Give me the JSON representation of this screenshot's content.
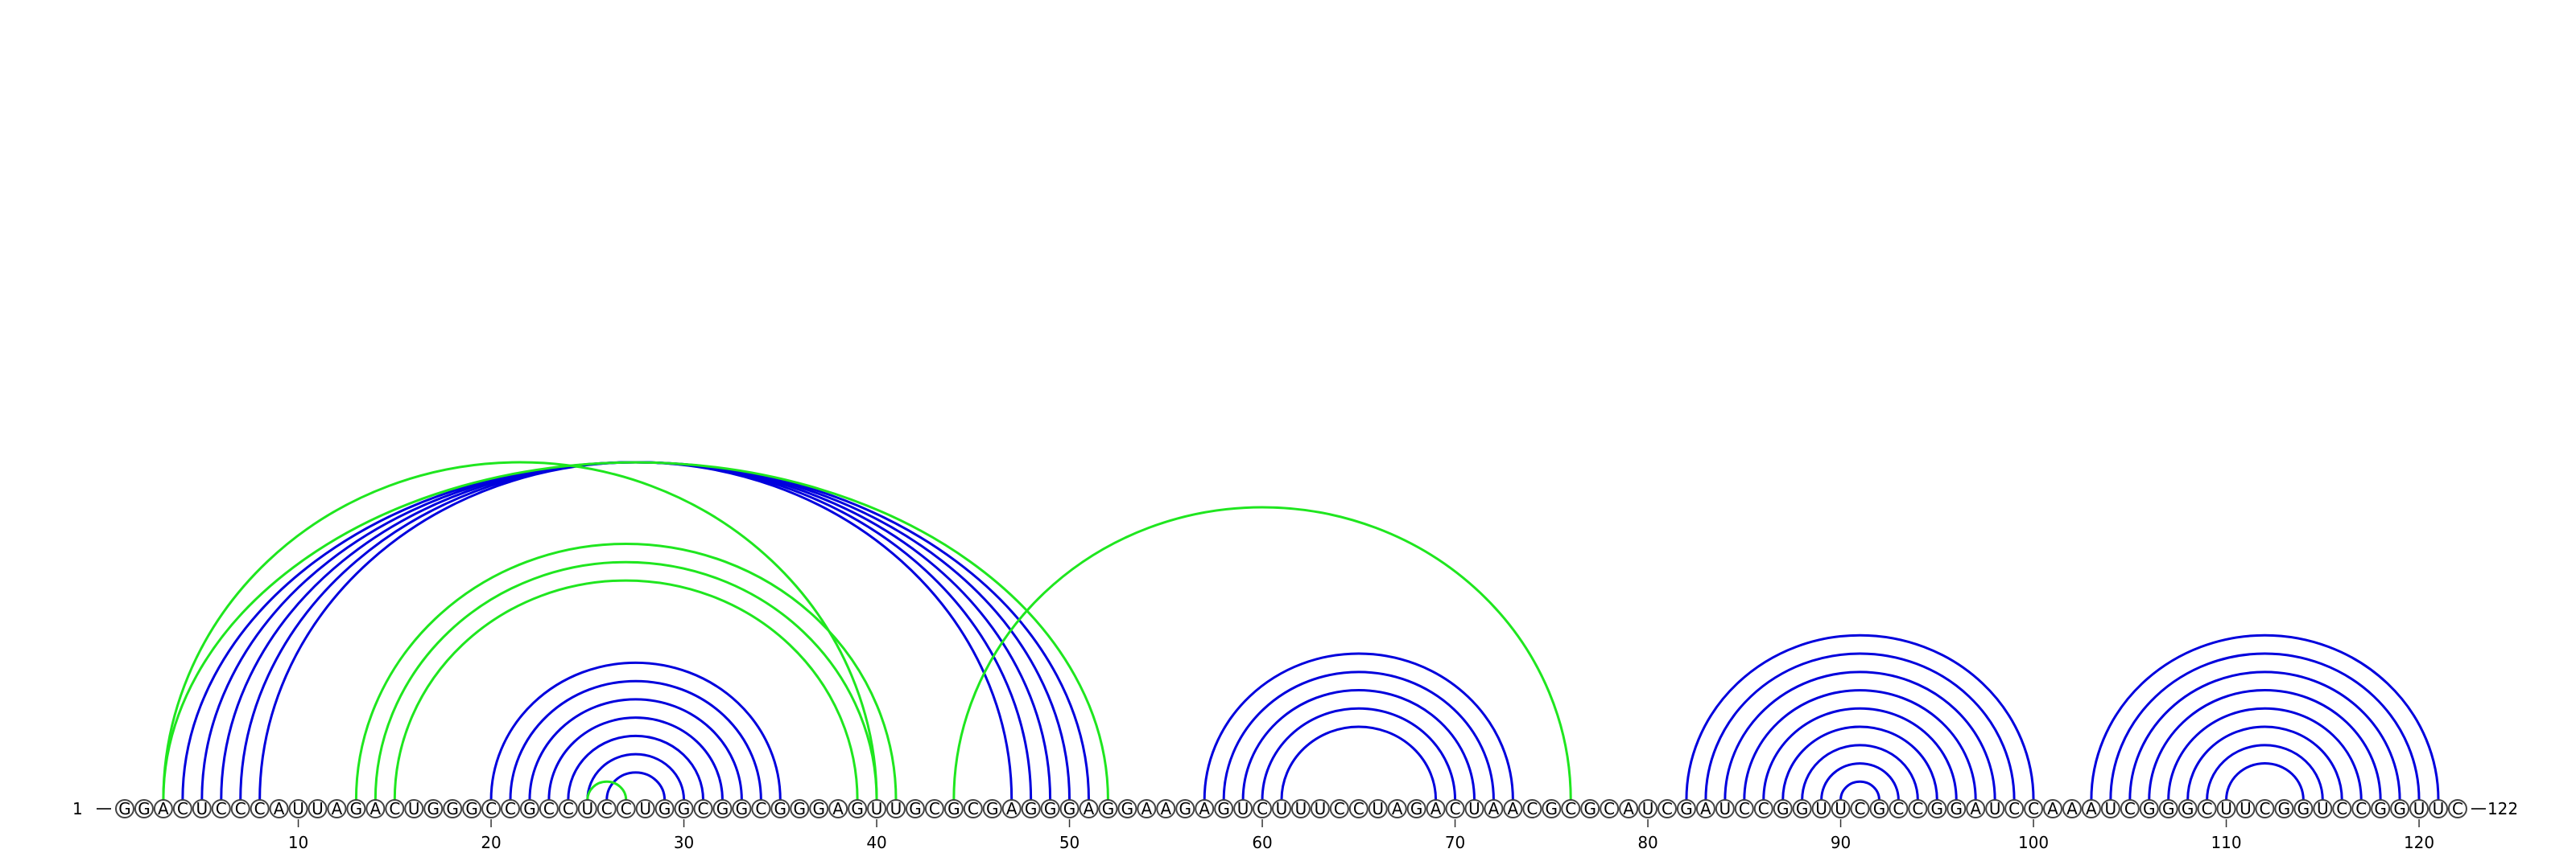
{
  "colors": {
    "primary_pair": "#0000dd",
    "alternative_pair": "#1fe61f",
    "nucleotide_outline": "#444444",
    "background": "#ffffff"
  },
  "chart_data": {
    "type": "arc-diagram",
    "sequence": "GGACUCCCAUUAGACUGGGCCGCCUCCUGGCGGCGGGAGUUGCGCGAGGGAGGAAGAGUCUUUCCUAGACUAACGCGCAUCGAUCCGGUUCGCCGGAUCCAAAUCGGGCUUCGGUCCGGUUC",
    "length": 122,
    "start_label": "1",
    "end_label": "122",
    "ticks": [
      10,
      20,
      30,
      40,
      50,
      60,
      70,
      80,
      90,
      100,
      110,
      120
    ],
    "tick_labels": [
      "10",
      "20",
      "30",
      "40",
      "50",
      "60",
      "70",
      "80",
      "90",
      "100",
      "110",
      "120"
    ],
    "primary_pairs": [
      [
        4,
        51
      ],
      [
        5,
        50
      ],
      [
        6,
        49
      ],
      [
        7,
        48
      ],
      [
        8,
        47
      ],
      [
        20,
        35
      ],
      [
        21,
        34
      ],
      [
        22,
        33
      ],
      [
        23,
        32
      ],
      [
        24,
        31
      ],
      [
        25,
        30
      ],
      [
        26,
        29
      ],
      [
        57,
        73
      ],
      [
        58,
        72
      ],
      [
        59,
        71
      ],
      [
        60,
        70
      ],
      [
        61,
        69
      ],
      [
        82,
        100
      ],
      [
        83,
        99
      ],
      [
        84,
        98
      ],
      [
        85,
        97
      ],
      [
        86,
        96
      ],
      [
        87,
        95
      ],
      [
        88,
        94
      ],
      [
        89,
        93
      ],
      [
        90,
        92
      ],
      [
        103,
        121
      ],
      [
        104,
        120
      ],
      [
        105,
        119
      ],
      [
        106,
        118
      ],
      [
        107,
        117
      ],
      [
        108,
        116
      ],
      [
        109,
        115
      ],
      [
        110,
        114
      ]
    ],
    "alternative_pairs": [
      [
        3,
        52
      ],
      [
        3,
        40
      ],
      [
        13,
        41
      ],
      [
        14,
        40
      ],
      [
        15,
        39
      ],
      [
        25,
        27
      ],
      [
        44,
        76
      ]
    ]
  }
}
